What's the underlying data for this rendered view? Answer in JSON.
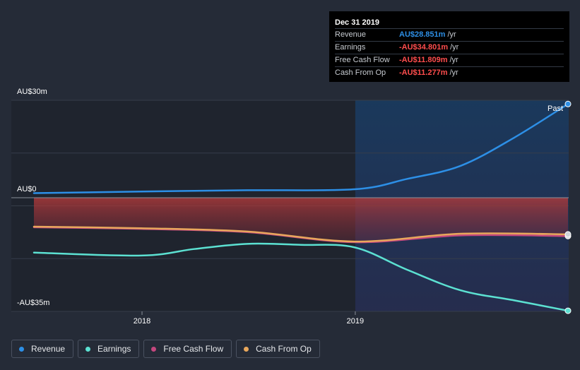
{
  "chart_data": {
    "type": "line",
    "y_unit": "AU$m",
    "ylim": [
      -35,
      30
    ],
    "y_ticks": [
      {
        "value": 30,
        "label": "AU$30m"
      },
      {
        "value": 0,
        "label": "AU$0"
      },
      {
        "value": -35,
        "label": "-AU$35m"
      }
    ],
    "x_ticks": [
      {
        "date": "2018-01-01",
        "label": "2018"
      },
      {
        "date": "2019-01-01",
        "label": "2019"
      }
    ],
    "xlim": [
      "2017-06-30",
      "2019-12-31"
    ],
    "past_start": "2019-01-01",
    "past_label": "Past",
    "series": [
      {
        "name": "Revenue",
        "color": "#2d8fe6",
        "points": [
          [
            "2017-06-30",
            1.4
          ],
          [
            "2017-12-31",
            1.9
          ],
          [
            "2018-06-30",
            2.3
          ],
          [
            "2018-12-31",
            2.6
          ],
          [
            "2019-03-31",
            5.8
          ],
          [
            "2019-06-30",
            9.8
          ],
          [
            "2019-09-30",
            18.5
          ],
          [
            "2019-12-31",
            28.851
          ]
        ]
      },
      {
        "name": "Earnings",
        "color": "#5ce1d2",
        "points": [
          [
            "2017-06-30",
            -16.9
          ],
          [
            "2017-12-31",
            -17.8
          ],
          [
            "2018-03-31",
            -15.8
          ],
          [
            "2018-06-30",
            -14.2
          ],
          [
            "2018-09-30",
            -14.5
          ],
          [
            "2018-12-31",
            -15.3
          ],
          [
            "2019-03-31",
            -22.2
          ],
          [
            "2019-06-30",
            -28.5
          ],
          [
            "2019-09-30",
            -31.6
          ],
          [
            "2019-12-31",
            -34.801
          ]
        ]
      },
      {
        "name": "Free Cash Flow",
        "color": "#c4477e",
        "points": [
          [
            "2017-06-30",
            -9.1
          ],
          [
            "2017-12-31",
            -9.6
          ],
          [
            "2018-06-30",
            -10.6
          ],
          [
            "2018-12-31",
            -13.7
          ],
          [
            "2019-06-30",
            -11.6
          ],
          [
            "2019-12-31",
            -11.809
          ]
        ]
      },
      {
        "name": "Cash From Op",
        "color": "#e8a75c",
        "points": [
          [
            "2017-06-30",
            -8.9
          ],
          [
            "2017-12-31",
            -9.4
          ],
          [
            "2018-06-30",
            -10.4
          ],
          [
            "2018-12-31",
            -13.5
          ],
          [
            "2019-06-30",
            -11.1
          ],
          [
            "2019-12-31",
            -11.277
          ]
        ]
      }
    ]
  },
  "tooltip": {
    "date": "Dec 31 2019",
    "rows": [
      {
        "label": "Revenue",
        "value": "AU$28.851m",
        "unit": "/yr",
        "color": "#2d8fe6"
      },
      {
        "label": "Earnings",
        "value": "-AU$34.801m",
        "unit": "/yr",
        "color": "#ff4d4d"
      },
      {
        "label": "Free Cash Flow",
        "value": "-AU$11.809m",
        "unit": "/yr",
        "color": "#ff4d4d"
      },
      {
        "label": "Cash From Op",
        "value": "-AU$11.277m",
        "unit": "/yr",
        "color": "#ff4d4d"
      }
    ]
  },
  "legend": [
    {
      "label": "Revenue",
      "color": "#2d8fe6"
    },
    {
      "label": "Earnings",
      "color": "#5ce1d2"
    },
    {
      "label": "Free Cash Flow",
      "color": "#c4477e"
    },
    {
      "label": "Cash From Op",
      "color": "#e8a75c"
    }
  ]
}
